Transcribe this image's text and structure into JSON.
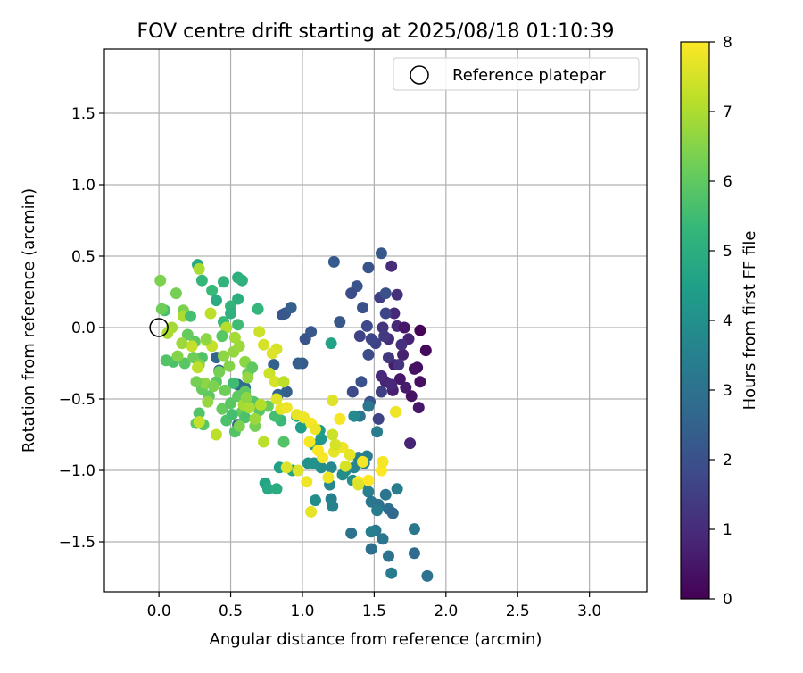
{
  "chart_data": {
    "type": "scatter",
    "title": "FOV centre drift starting at 2025/08/18 01:10:39",
    "xlabel": "Angular distance from reference (arcmin)",
    "ylabel": "Rotation from reference (arcmin)",
    "xlim": [
      -0.38,
      3.4
    ],
    "ylim": [
      -1.85,
      1.95
    ],
    "xticks": [
      0.0,
      0.5,
      1.0,
      1.5,
      2.0,
      2.5,
      3.0
    ],
    "xtick_labels": [
      "0.0",
      "0.5",
      "1.0",
      "1.5",
      "2.0",
      "2.5",
      "3.0"
    ],
    "yticks": [
      -1.5,
      -1.0,
      -0.5,
      0.0,
      0.5,
      1.0,
      1.5
    ],
    "ytick_labels": [
      "−1.5",
      "−1.0",
      "−0.5",
      "0.0",
      "0.5",
      "1.0",
      "1.5"
    ],
    "grid": true,
    "legend": {
      "placement": "top-right",
      "label": "Reference platepar",
      "marker": "open-circle"
    },
    "reference_point": {
      "x": 0.0,
      "y": 0.0
    },
    "colorbar": {
      "label": "Hours from first FF file",
      "colormap": "viridis",
      "range": [
        0,
        8
      ],
      "ticks": [
        0,
        1,
        2,
        3,
        4,
        5,
        6,
        7,
        8
      ],
      "tick_labels": [
        "0",
        "1",
        "2",
        "3",
        "4",
        "5",
        "6",
        "7",
        "8"
      ]
    },
    "colormap_stops": [
      "#440154",
      "#482878",
      "#3e4989",
      "#31688e",
      "#26828e",
      "#1f9e89",
      "#35b779",
      "#6ece58",
      "#b5de2b",
      "#fde725"
    ],
    "points": [
      [
        1.82,
        -0.02,
        0.1
      ],
      [
        1.86,
        -0.16,
        0.2
      ],
      [
        1.8,
        -0.28,
        0.3
      ],
      [
        1.82,
        -0.38,
        0.35
      ],
      [
        1.76,
        -0.48,
        0.4
      ],
      [
        1.81,
        -0.56,
        0.5
      ],
      [
        1.72,
        -0.42,
        0.6
      ],
      [
        1.68,
        -0.36,
        0.5
      ],
      [
        1.63,
        -0.44,
        0.7
      ],
      [
        1.58,
        -0.38,
        0.8
      ],
      [
        1.55,
        -0.34,
        0.9
      ],
      [
        1.64,
        -0.26,
        0.6
      ],
      [
        1.7,
        -0.19,
        0.7
      ],
      [
        1.74,
        -0.08,
        0.8
      ],
      [
        1.66,
        0.01,
        0.9
      ],
      [
        1.71,
        0.0,
        0.5
      ],
      [
        1.6,
        -0.08,
        1.0
      ],
      [
        1.64,
        0.1,
        0.9
      ],
      [
        1.62,
        0.43,
        1.0
      ],
      [
        1.66,
        0.23,
        1.1
      ],
      [
        1.56,
        0.0,
        1.2
      ],
      [
        1.6,
        -0.21,
        1.3
      ],
      [
        1.69,
        -0.12,
        1.1
      ],
      [
        1.54,
        0.21,
        1.5
      ],
      [
        1.57,
        -0.06,
        1.4
      ],
      [
        1.78,
        -0.29,
        0.4
      ],
      [
        1.75,
        -0.81,
        0.8
      ],
      [
        1.67,
        -0.26,
        1.2
      ],
      [
        1.62,
        -0.4,
        0.9
      ],
      [
        1.51,
        -0.11,
        1.6
      ],
      [
        1.58,
        0.1,
        1.7
      ],
      [
        1.55,
        -0.45,
        1.5
      ],
      [
        1.53,
        -0.64,
        1.6
      ],
      [
        1.45,
        0.01,
        1.8
      ],
      [
        1.48,
        -0.08,
        1.7
      ],
      [
        1.46,
        -0.19,
        1.9
      ],
      [
        1.4,
        -0.06,
        1.6
      ],
      [
        1.35,
        -0.45,
        1.8
      ],
      [
        1.41,
        -0.38,
        2.0
      ],
      [
        1.47,
        -0.52,
        2.1
      ],
      [
        1.42,
        0.14,
        2.0
      ],
      [
        1.38,
        0.29,
        2.1
      ],
      [
        1.34,
        0.24,
        1.9
      ],
      [
        1.26,
        0.04,
        2.2
      ],
      [
        1.22,
        0.46,
        2.3
      ],
      [
        1.46,
        0.42,
        2.1
      ],
      [
        1.55,
        0.52,
        2.2
      ],
      [
        1.58,
        0.24,
        2.0
      ],
      [
        1.02,
        -0.08,
        2.1
      ],
      [
        1.0,
        -0.25,
        2.3
      ],
      [
        0.97,
        -0.25,
        2.4
      ],
      [
        1.06,
        -0.03,
        2.2
      ],
      [
        0.88,
        0.1,
        2.3
      ],
      [
        0.92,
        0.14,
        2.4
      ],
      [
        0.86,
        0.09,
        2.2
      ],
      [
        0.8,
        -0.26,
        2.5
      ],
      [
        0.89,
        -0.45,
        2.4
      ],
      [
        0.83,
        -0.47,
        2.6
      ],
      [
        0.55,
        -0.68,
        2.5
      ],
      [
        0.4,
        -0.21,
        2.6
      ],
      [
        0.42,
        -0.3,
        2.7
      ],
      [
        0.55,
        -0.4,
        2.8
      ],
      [
        0.6,
        -0.42,
        2.9
      ],
      [
        0.65,
        -0.55,
        3.0
      ],
      [
        1.4,
        -0.62,
        3.1
      ],
      [
        1.46,
        -0.55,
        3.2
      ],
      [
        1.52,
        -0.73,
        3.3
      ],
      [
        1.45,
        -0.9,
        3.4
      ],
      [
        1.39,
        -0.91,
        3.5
      ],
      [
        1.43,
        -0.95,
        3.6
      ],
      [
        1.36,
        -0.98,
        3.7
      ],
      [
        1.3,
        -1.0,
        3.8
      ],
      [
        1.28,
        -1.03,
        3.9
      ],
      [
        1.35,
        -1.07,
        4.0
      ],
      [
        1.43,
        -1.09,
        3.8
      ],
      [
        1.46,
        -1.15,
        3.5
      ],
      [
        1.48,
        -1.22,
        3.2
      ],
      [
        1.53,
        -1.24,
        3.0
      ],
      [
        1.52,
        -1.28,
        3.3
      ],
      [
        1.58,
        -1.17,
        3.1
      ],
      [
        1.66,
        -1.13,
        3.4
      ],
      [
        1.6,
        -1.27,
        2.9
      ],
      [
        1.63,
        -1.3,
        2.7
      ],
      [
        1.78,
        -1.41,
        3.2
      ],
      [
        1.87,
        -1.74,
        3.0
      ],
      [
        1.78,
        -1.58,
        2.8
      ],
      [
        1.62,
        -1.72,
        3.3
      ],
      [
        1.6,
        -1.6,
        3.0
      ],
      [
        1.56,
        -1.48,
        3.1
      ],
      [
        1.51,
        -1.42,
        3.2
      ],
      [
        1.48,
        -1.43,
        3.4
      ],
      [
        1.48,
        -1.55,
        2.9
      ],
      [
        1.34,
        -1.44,
        3.0
      ],
      [
        1.2,
        -1.2,
        3.5
      ],
      [
        1.21,
        -1.25,
        3.6
      ],
      [
        1.19,
        -1.1,
        3.7
      ],
      [
        1.2,
        -0.98,
        3.8
      ],
      [
        1.13,
        -0.98,
        3.9
      ],
      [
        1.08,
        -0.95,
        4.0
      ],
      [
        1.04,
        -0.95,
        4.1
      ],
      [
        1.08,
        -0.82,
        4.2
      ],
      [
        1.13,
        -0.78,
        4.3
      ],
      [
        1.12,
        -0.72,
        4.4
      ],
      [
        0.96,
        -0.62,
        4.5
      ],
      [
        0.99,
        -0.7,
        4.4
      ],
      [
        0.84,
        -0.98,
        4.5
      ],
      [
        0.93,
        -1.0,
        4.6
      ],
      [
        0.74,
        -1.09,
        4.7
      ],
      [
        0.76,
        -1.13,
        4.8
      ],
      [
        0.82,
        -1.13,
        4.9
      ],
      [
        1.09,
        -1.21,
        3.9
      ],
      [
        1.36,
        -0.62,
        3.8
      ],
      [
        1.2,
        -0.11,
        4.6
      ],
      [
        0.27,
        0.44,
        4.8
      ],
      [
        0.55,
        0.35,
        5.0
      ],
      [
        0.58,
        0.33,
        5.1
      ],
      [
        0.45,
        0.32,
        5.2
      ],
      [
        0.3,
        0.33,
        5.3
      ],
      [
        0.37,
        0.26,
        5.4
      ],
      [
        0.4,
        0.19,
        4.9
      ],
      [
        0.55,
        0.2,
        5.0
      ],
      [
        0.5,
        0.15,
        5.2
      ],
      [
        0.69,
        0.13,
        5.3
      ],
      [
        0.45,
        0.04,
        5.4
      ],
      [
        0.5,
        0.1,
        5.1
      ],
      [
        0.55,
        0.02,
        5.5
      ],
      [
        0.04,
        0.12,
        5.6
      ],
      [
        0.1,
        -0.24,
        5.7
      ],
      [
        0.05,
        -0.23,
        5.8
      ],
      [
        0.18,
        -0.25,
        5.9
      ],
      [
        0.25,
        -0.1,
        6.0
      ],
      [
        0.3,
        -0.21,
        5.8
      ],
      [
        0.4,
        -0.38,
        5.9
      ],
      [
        0.35,
        -0.48,
        6.0
      ],
      [
        0.3,
        -0.43,
        6.1
      ],
      [
        0.28,
        -0.6,
        5.8
      ],
      [
        0.31,
        -0.68,
        5.9
      ],
      [
        0.26,
        -0.67,
        6.0
      ],
      [
        0.44,
        -0.57,
        6.1
      ],
      [
        0.47,
        -0.65,
        5.7
      ],
      [
        0.53,
        -0.73,
        5.8
      ],
      [
        0.5,
        -0.53,
        5.9
      ],
      [
        0.55,
        -0.48,
        6.0
      ],
      [
        0.58,
        -0.59,
        6.1
      ],
      [
        0.6,
        -0.63,
        5.7
      ],
      [
        0.66,
        -0.52,
        5.8
      ],
      [
        0.7,
        -0.58,
        5.9
      ],
      [
        0.62,
        -0.32,
        6.2
      ],
      [
        0.6,
        -0.45,
        6.0
      ],
      [
        0.67,
        -0.69,
        6.3
      ],
      [
        0.85,
        -0.65,
        5.4
      ],
      [
        0.87,
        -0.8,
        5.8
      ],
      [
        0.81,
        -0.62,
        5.6
      ],
      [
        0.76,
        -0.55,
        6.1
      ],
      [
        0.01,
        0.33,
        6.4
      ],
      [
        0.02,
        0.13,
        6.2
      ],
      [
        0.12,
        0.24,
        6.3
      ],
      [
        0.17,
        0.12,
        6.4
      ],
      [
        0.2,
        -0.05,
        6.1
      ],
      [
        0.24,
        -0.21,
        6.2
      ],
      [
        0.28,
        -0.26,
        6.5
      ],
      [
        0.32,
        -0.39,
        6.6
      ],
      [
        0.34,
        -0.52,
        6.7
      ],
      [
        0.38,
        -0.41,
        6.4
      ],
      [
        0.42,
        -0.31,
        6.3
      ],
      [
        0.45,
        -0.2,
        6.6
      ],
      [
        0.49,
        -0.27,
        6.5
      ],
      [
        0.52,
        -0.17,
        6.7
      ],
      [
        0.56,
        -0.13,
        6.8
      ],
      [
        0.53,
        -0.07,
        6.9
      ],
      [
        0.6,
        -0.24,
        6.6
      ],
      [
        0.62,
        -0.35,
        6.7
      ],
      [
        0.59,
        -0.54,
        6.9
      ],
      [
        0.63,
        -0.56,
        7.0
      ],
      [
        0.67,
        -0.64,
        6.8
      ],
      [
        0.71,
        -0.54,
        7.1
      ],
      [
        0.73,
        -0.8,
        7.2
      ],
      [
        0.28,
        0.41,
        7.0
      ],
      [
        0.36,
        0.1,
        7.2
      ],
      [
        0.47,
        0.0,
        7.1
      ],
      [
        0.17,
        0.08,
        7.0
      ],
      [
        0.23,
        -0.13,
        7.3
      ],
      [
        0.27,
        -0.28,
        7.2
      ],
      [
        0.33,
        -0.09,
        7.4
      ],
      [
        0.37,
        -0.13,
        7.3
      ],
      [
        0.4,
        -0.75,
        7.2
      ],
      [
        0.28,
        -0.66,
        7.3
      ],
      [
        0.7,
        -0.03,
        7.4
      ],
      [
        0.73,
        -0.12,
        7.5
      ],
      [
        0.77,
        -0.32,
        7.4
      ],
      [
        0.81,
        -0.38,
        7.5
      ],
      [
        0.82,
        -0.5,
        7.6
      ],
      [
        0.85,
        -0.57,
        7.7
      ],
      [
        0.82,
        -0.15,
        7.5
      ],
      [
        0.79,
        -0.18,
        7.6
      ],
      [
        0.89,
        -0.56,
        7.8
      ],
      [
        0.89,
        -0.98,
        7.6
      ],
      [
        0.96,
        -0.61,
        7.7
      ],
      [
        1.01,
        -0.63,
        7.8
      ],
      [
        1.06,
        -0.67,
        7.9
      ],
      [
        1.09,
        -0.71,
        7.8
      ],
      [
        1.05,
        -0.8,
        7.9
      ],
      [
        1.11,
        -0.86,
        8.0
      ],
      [
        1.14,
        -0.91,
        7.9
      ],
      [
        1.18,
        -1.05,
        7.8
      ],
      [
        1.22,
        -0.87,
        7.7
      ],
      [
        1.21,
        -0.51,
        7.6
      ],
      [
        1.26,
        -0.64,
        7.9
      ],
      [
        1.28,
        -0.84,
        7.8
      ],
      [
        1.33,
        -0.89,
        7.7
      ],
      [
        1.39,
        -1.08,
        8.0
      ],
      [
        1.42,
        -0.94,
        7.9
      ],
      [
        1.46,
        -1.07,
        8.0
      ],
      [
        1.55,
        -1.0,
        8.0
      ],
      [
        1.56,
        -0.94,
        7.9
      ],
      [
        1.65,
        -0.59,
        7.8
      ],
      [
        1.39,
        -1.1,
        7.6
      ],
      [
        1.06,
        -1.29,
        7.7
      ],
      [
        1.03,
        -1.08,
        7.8
      ],
      [
        0.97,
        -1.0,
        7.6
      ],
      [
        1.23,
        -0.82,
        7.5
      ],
      [
        1.21,
        -0.75,
        7.4
      ],
      [
        1.3,
        -0.97,
        7.5
      ],
      [
        0.87,
        -0.38,
        7.2
      ],
      [
        0.33,
        -0.08,
        6.6
      ],
      [
        0.26,
        -0.38,
        6.3
      ],
      [
        0.44,
        -0.06,
        5.9
      ],
      [
        0.52,
        -0.39,
        5.5
      ],
      [
        0.13,
        -0.2,
        6.5
      ],
      [
        0.09,
        0.0,
        6.9
      ],
      [
        0.06,
        -0.04,
        7.0
      ],
      [
        0.22,
        0.08,
        5.6
      ],
      [
        0.16,
        -0.11,
        6.8
      ],
      [
        0.46,
        -0.44,
        6.2
      ],
      [
        0.51,
        -0.61,
        5.6
      ],
      [
        0.56,
        -0.69,
        6.4
      ],
      [
        0.61,
        -0.49,
        6.6
      ],
      [
        0.65,
        -0.28,
        6.0
      ]
    ]
  }
}
